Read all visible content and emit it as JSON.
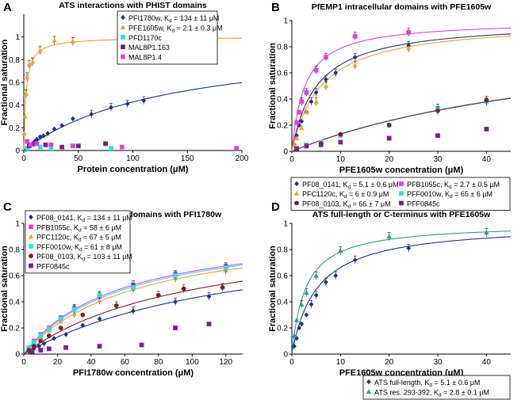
{
  "chart_data": [
    {
      "id": "A",
      "panel_label": "A",
      "type": "scatter",
      "title": "ATS interactions with PHIST domains",
      "xlabel": "Protein concentration (μM)",
      "ylabel": "Fractional saturation",
      "xlim": [
        0,
        200
      ],
      "ylim": [
        0,
        1.2
      ],
      "xticks": [
        0,
        50,
        100,
        150,
        200
      ],
      "yticks": [
        0,
        0.2,
        0.4,
        0.6,
        0.8,
        1
      ],
      "legend_position": "top-right",
      "series": [
        {
          "name": "PFI1780w, Kd = 134 ± 11 μM",
          "label": "PFI1780w, K",
          "sub": "d",
          "rest": " = 134 ± 11 μM",
          "color": "#1f2f8c",
          "marker": "diamond",
          "fit_kd": 134,
          "points": [
            [
              2,
              0.01
            ],
            [
              4,
              0.03
            ],
            [
              6,
              0.05
            ],
            [
              8,
              0.06
            ],
            [
              10,
              0.08
            ],
            [
              12,
              0.1
            ],
            [
              15,
              0.12
            ],
            [
              18,
              0.13
            ],
            [
              22,
              0.15
            ],
            [
              28,
              0.19
            ],
            [
              35,
              0.22
            ],
            [
              45,
              0.28
            ],
            [
              62,
              0.32
            ],
            [
              80,
              0.38
            ],
            [
              95,
              0.41
            ],
            [
              110,
              0.44
            ]
          ]
        },
        {
          "name": "PFE1605w, Kd = 2.1 ± 0.3 μM",
          "label": "PFE1605w, K",
          "sub": "d",
          "rest": " = 2.1 ± 0.3 μM",
          "color": "#f0a030",
          "marker": "triangle",
          "fit_kd": 2.1,
          "points": [
            [
              0.5,
              0.15
            ],
            [
              1,
              0.3
            ],
            [
              2,
              0.5
            ],
            [
              3,
              0.65
            ],
            [
              5,
              0.76
            ],
            [
              8,
              0.78
            ],
            [
              15,
              0.88
            ],
            [
              28,
              0.97
            ],
            [
              45,
              0.96
            ]
          ]
        },
        {
          "name": "PFD1170c",
          "label": "PFD1170c",
          "sub": "",
          "rest": "",
          "color": "#2be0e8",
          "marker": "square",
          "points": [
            [
              3,
              0.02
            ],
            [
              8,
              0.05
            ],
            [
              15,
              0.03
            ],
            [
              25,
              0.02
            ],
            [
              45,
              0.04
            ],
            [
              80,
              0.02
            ]
          ]
        },
        {
          "name": "MAL8P1.163",
          "label": "MAL8P1.163",
          "sub": "",
          "rest": "",
          "color": "#7a1f8c",
          "marker": "square",
          "points": [
            [
              5,
              0.04
            ],
            [
              10,
              0.06
            ],
            [
              20,
              0.05
            ],
            [
              35,
              0.03
            ],
            [
              50,
              0.04
            ],
            [
              75,
              0.06
            ]
          ]
        },
        {
          "name": "MAL8P1.4",
          "label": "MAL8P1.4",
          "sub": "",
          "rest": "",
          "color": "#e040e0",
          "marker": "square",
          "points": [
            [
              3,
              0.08
            ],
            [
              6,
              0.05
            ],
            [
              12,
              0.06
            ],
            [
              25,
              0.05
            ],
            [
              45,
              0.04
            ],
            [
              90,
              0.03
            ],
            [
              195,
              0.02
            ]
          ]
        }
      ]
    },
    {
      "id": "B",
      "panel_label": "B",
      "type": "scatter",
      "title": "PfEMP1 intracellular domains with PFE1605w",
      "xlabel": "PFE1605w concentration (μM)",
      "ylabel": "Fractional saturation",
      "xlim": [
        0,
        45
      ],
      "ylim": [
        0,
        1.0
      ],
      "xticks": [
        0,
        10,
        20,
        30,
        40
      ],
      "yticks": [
        0,
        0.2,
        0.4,
        0.6,
        0.8,
        1
      ],
      "legend_position": "bottom",
      "series": [
        {
          "name": "PF08_0141, Kd = 5.1 ± 0.6 μM",
          "label": "PF08_0141, K",
          "sub": "d",
          "rest": " = 5.1 ± 0.6 μM",
          "color": "#1f2f8c",
          "marker": "diamond",
          "fit_kd": 5.1,
          "fit_max": 1.0,
          "points": [
            [
              0.5,
              0.05
            ],
            [
              1,
              0.12
            ],
            [
              1.5,
              0.2
            ],
            [
              2,
              0.23
            ],
            [
              3,
              0.3
            ],
            [
              4,
              0.38
            ],
            [
              5,
              0.45
            ],
            [
              7,
              0.55
            ],
            [
              9,
              0.6
            ],
            [
              13,
              0.72
            ],
            [
              24,
              0.81
            ]
          ]
        },
        {
          "name": "PFB1055c, Kd = 2.7 ± 0.5 μM",
          "label": "PFB1055c, K",
          "sub": "d",
          "rest": " = 2.7 ± 0.5 μM",
          "color": "#e040e0",
          "marker": "square",
          "fit_kd": 2.7,
          "fit_max": 1.0,
          "points": [
            [
              1,
              0.22
            ],
            [
              1.5,
              0.3
            ],
            [
              2,
              0.38
            ],
            [
              3,
              0.45
            ],
            [
              5,
              0.62
            ],
            [
              7,
              0.72
            ],
            [
              13,
              0.88
            ],
            [
              24,
              0.91
            ]
          ]
        },
        {
          "name": "PFC1120c, Kd = 6 ± 0.9 μM",
          "label": "PFC1120c, K",
          "sub": "d",
          "rest": " = 6 ± 0.9 μM",
          "color": "#f0a030",
          "marker": "triangle",
          "fit_kd": 6,
          "fit_max": 1.0,
          "points": [
            [
              0.5,
              0.05
            ],
            [
              1,
              0.1
            ],
            [
              2,
              0.18
            ],
            [
              3,
              0.3
            ],
            [
              5,
              0.38
            ],
            [
              7,
              0.5
            ],
            [
              13,
              0.66
            ],
            [
              24,
              0.79
            ]
          ]
        },
        {
          "name": "PFF0010w, Kd = 65 ± 6 μM",
          "label": "PFF0010w, K",
          "sub": "d",
          "rest": " = 65 ± 6 μM",
          "color": "#2be0e8",
          "marker": "square",
          "fit_kd": 65,
          "fit_max": 1.0,
          "points": [
            [
              1,
              0.02
            ],
            [
              3,
              0.05
            ],
            [
              6,
              0.07
            ],
            [
              10,
              0.12
            ],
            [
              20,
              0.2
            ],
            [
              30,
              0.33
            ],
            [
              40,
              0.38
            ]
          ]
        },
        {
          "name": "PF08_0103, Kd = 66 ± 7 μM",
          "label": "PF08_0103, K",
          "sub": "d",
          "rest": " = 66 ± 7 μM",
          "color": "#7a1f2a",
          "marker": "circle",
          "fit_kd": 66,
          "fit_max": 1.0,
          "points": [
            [
              1,
              0.02
            ],
            [
              3,
              0.04
            ],
            [
              6,
              0.06
            ],
            [
              10,
              0.13
            ],
            [
              20,
              0.2
            ],
            [
              30,
              0.31
            ],
            [
              40,
              0.39
            ]
          ]
        },
        {
          "name": "PFF0845c",
          "label": "PFF0845c",
          "sub": "",
          "rest": "",
          "color": "#7a1f8c",
          "marker": "square",
          "points": [
            [
              1,
              0.02
            ],
            [
              3,
              0.04
            ],
            [
              6,
              0.05
            ],
            [
              10,
              0.07
            ],
            [
              20,
              0.1
            ],
            [
              30,
              0.12
            ],
            [
              40,
              0.17
            ]
          ]
        }
      ]
    },
    {
      "id": "C",
      "panel_label": "C",
      "type": "scatter",
      "title": "PfEMP1 intracellular domains with PFI1780w",
      "xlabel": "PFI1780w concentration (μM)",
      "ylabel": "Fractional saturation",
      "xlim": [
        0,
        130
      ],
      "ylim": [
        0,
        1.0
      ],
      "xticks": [
        0,
        20,
        40,
        60,
        80,
        100,
        120
      ],
      "yticks": [
        0,
        0.2,
        0.4,
        0.6,
        0.8,
        1
      ],
      "legend_position": "top-left",
      "series": [
        {
          "name": "PF08_0141, Kd = 134 ± 11 μM",
          "label": "PF08_0141, K",
          "sub": "d",
          "rest": " = 134 ± 11 μM",
          "color": "#1f2f8c",
          "marker": "diamond",
          "fit_kd": 134,
          "fit_max": 1.0,
          "points": [
            [
              3,
              0.02
            ],
            [
              6,
              0.04
            ],
            [
              9,
              0.06
            ],
            [
              12,
              0.08
            ],
            [
              18,
              0.12
            ],
            [
              25,
              0.15
            ],
            [
              35,
              0.22
            ],
            [
              45,
              0.27
            ],
            [
              65,
              0.33
            ],
            [
              90,
              0.4
            ],
            [
              110,
              0.44
            ]
          ]
        },
        {
          "name": "PFB1055c, Kd = 58 ± 6 μM",
          "label": "PFB1055c, K",
          "sub": "d",
          "rest": " = 58 ± 6 μM",
          "color": "#e040e0",
          "marker": "square",
          "fit_kd": 58,
          "fit_max": 1.0,
          "points": [
            [
              3,
              0.05
            ],
            [
              6,
              0.1
            ],
            [
              10,
              0.15
            ],
            [
              15,
              0.2
            ],
            [
              22,
              0.28
            ],
            [
              30,
              0.35
            ],
            [
              45,
              0.44
            ],
            [
              65,
              0.53
            ],
            [
              90,
              0.61
            ],
            [
              120,
              0.67
            ]
          ]
        },
        {
          "name": "PFC1120c, Kd = 67 ± 5 μM",
          "label": "PFC1120c, K",
          "sub": "d",
          "rest": " = 67 ± 5 μM",
          "color": "#f0a030",
          "marker": "triangle",
          "fit_kd": 67,
          "fit_max": 1.0,
          "points": [
            [
              3,
              0.04
            ],
            [
              6,
              0.08
            ],
            [
              10,
              0.13
            ],
            [
              15,
              0.18
            ],
            [
              22,
              0.25
            ],
            [
              30,
              0.31
            ],
            [
              45,
              0.41
            ],
            [
              65,
              0.5
            ],
            [
              90,
              0.58
            ],
            [
              120,
              0.64
            ]
          ]
        },
        {
          "name": "PFF0010w, Kd = 61 ± 8 μM",
          "label": "PFF0010w, K",
          "sub": "d",
          "rest": " = 61 ± 8 μM",
          "color": "#2be0e8",
          "marker": "square",
          "fit_kd": 61,
          "fit_max": 1.0,
          "points": [
            [
              3,
              0.05
            ],
            [
              6,
              0.09
            ],
            [
              10,
              0.14
            ],
            [
              15,
              0.19
            ],
            [
              22,
              0.27
            ],
            [
              30,
              0.34
            ],
            [
              45,
              0.45
            ],
            [
              65,
              0.51
            ],
            [
              90,
              0.6
            ],
            [
              120,
              0.66
            ]
          ]
        },
        {
          "name": "PF08_0103, Kd = 103 ± 11 μM",
          "label": "PF08_0103, K",
          "sub": "d",
          "rest": " = 103 ± 11 μM",
          "color": "#7a1f2a",
          "marker": "circle",
          "fit_kd": 103,
          "fit_max": 1.0,
          "points": [
            [
              3,
              0.03
            ],
            [
              6,
              0.06
            ],
            [
              10,
              0.1
            ],
            [
              15,
              0.14
            ],
            [
              22,
              0.2
            ],
            [
              35,
              0.3
            ],
            [
              55,
              0.37
            ],
            [
              80,
              0.45
            ],
            [
              95,
              0.5
            ],
            [
              118,
              0.51
            ]
          ]
        },
        {
          "name": "PFF0845c",
          "label": "PFF0845c",
          "sub": "",
          "rest": "",
          "color": "#7a1f8c",
          "marker": "square",
          "points": [
            [
              5,
              0.02
            ],
            [
              10,
              0.03
            ],
            [
              15,
              0.04
            ],
            [
              25,
              0.05
            ],
            [
              45,
              0.06
            ],
            [
              70,
              0.07
            ],
            [
              90,
              0.2
            ],
            [
              110,
              0.23
            ]
          ]
        }
      ]
    },
    {
      "id": "D",
      "panel_label": "D",
      "type": "scatter",
      "title": "ATS full-length or C-terminus with PFE1605w",
      "xlabel": "PFE1605w concentration (μM)",
      "ylabel": "Fractional saturation",
      "xlim": [
        0,
        45
      ],
      "ylim": [
        0,
        1.0
      ],
      "xticks": [
        0,
        10,
        20,
        30,
        40
      ],
      "yticks": [
        0,
        0.2,
        0.4,
        0.6,
        0.8,
        1
      ],
      "legend_position": "bottom-right",
      "series": [
        {
          "name": "ATS full-length, Kd = 5.1 ± 0.6 μM",
          "label": "ATS full-length, K",
          "sub": "d",
          "rest": " = 5.1 ± 0.6 μM",
          "color": "#1f2f8c",
          "marker": "diamond",
          "fit_kd": 5.1,
          "fit_max": 1.0,
          "points": [
            [
              0.5,
              0.06
            ],
            [
              1,
              0.12
            ],
            [
              1.5,
              0.2
            ],
            [
              2,
              0.23
            ],
            [
              3,
              0.3
            ],
            [
              4,
              0.38
            ],
            [
              5,
              0.45
            ],
            [
              7,
              0.55
            ],
            [
              9,
              0.6
            ],
            [
              13,
              0.72
            ],
            [
              24,
              0.81
            ]
          ]
        },
        {
          "name": "ATS res. 293-392, Kd = 2.8 ± 0.1 μM",
          "label": "ATS res. 293-392, K",
          "sub": "d",
          "rest": " = 2.8 ± 0.1 μM",
          "color": "#2aa080",
          "marker": "triangle",
          "fit_kd": 2.8,
          "fit_max": 1.0,
          "points": [
            [
              0.5,
              0.14
            ],
            [
              1,
              0.26
            ],
            [
              2,
              0.38
            ],
            [
              3,
              0.47
            ],
            [
              5,
              0.6
            ],
            [
              10,
              0.79
            ],
            [
              20,
              0.9
            ],
            [
              40,
              0.93
            ]
          ]
        }
      ]
    }
  ],
  "colors": {
    "axis": "#000000",
    "background": "#ffffff"
  }
}
